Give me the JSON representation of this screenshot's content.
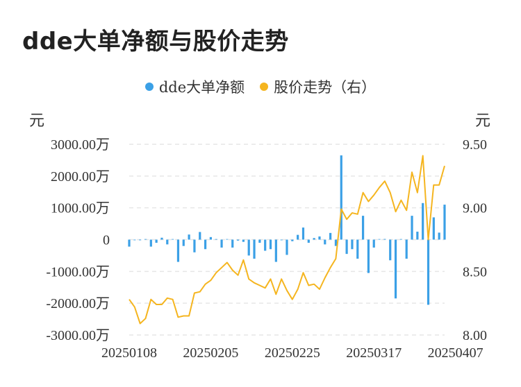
{
  "title": "dde大单净额与股价走势",
  "colors": {
    "bar": "#3ba0e6",
    "line": "#f5b51f",
    "grid": "#e6e6e6"
  },
  "chart_data": {
    "type": "bar+line",
    "legend": [
      {
        "name": "dde大单净额",
        "color": "#3ba0e6"
      },
      {
        "name": "股价走势（右）",
        "color": "#f5b51f"
      }
    ],
    "legend_position": "top-center",
    "y_left": {
      "unit": "元",
      "min": -3000,
      "max": 3000,
      "ticks": [
        3000,
        2000,
        1000,
        0,
        -1000,
        -2000,
        -3000
      ],
      "tick_labels": [
        "3000.00万",
        "2000.00万",
        "1000.00万",
        "0",
        "-1000.00万",
        "-2000.00万",
        "-3000.00万"
      ]
    },
    "y_right": {
      "unit": "元",
      "min": 8.0,
      "max": 9.5,
      "ticks": [
        9.5,
        9.0,
        8.5,
        8.0
      ],
      "tick_labels": [
        "9.50",
        "9.00",
        "8.50",
        "8.00"
      ]
    },
    "x_tick_labels": [
      {
        "index": 0,
        "label": "20250108"
      },
      {
        "index": 15,
        "label": "20250205"
      },
      {
        "index": 30,
        "label": "20250225"
      },
      {
        "index": 45,
        "label": "20250317"
      },
      {
        "index": 60,
        "label": "20250407"
      }
    ],
    "grid": true,
    "bar_values": [
      -220,
      -20,
      -20,
      10,
      -220,
      -100,
      60,
      -150,
      0,
      -700,
      -200,
      160,
      -400,
      240,
      -300,
      80,
      10,
      -250,
      10,
      -250,
      -30,
      -70,
      -500,
      -600,
      -100,
      -350,
      -300,
      -700,
      -20,
      -480,
      -50,
      150,
      380,
      -100,
      50,
      100,
      -150,
      210,
      -200,
      2650,
      -450,
      -300,
      -600,
      750,
      -1050,
      -250,
      0,
      20,
      -650,
      -1850,
      0,
      -600,
      750,
      250,
      1150,
      -2050,
      700,
      220,
      1100
    ],
    "price_values": [
      8.28,
      8.22,
      8.09,
      8.13,
      8.28,
      8.24,
      8.24,
      8.29,
      8.28,
      8.14,
      8.15,
      8.15,
      8.33,
      8.34,
      8.4,
      8.43,
      8.49,
      8.53,
      8.57,
      8.51,
      8.47,
      8.59,
      8.44,
      8.41,
      8.39,
      8.37,
      8.44,
      8.32,
      8.44,
      8.35,
      8.28,
      8.36,
      8.49,
      8.39,
      8.4,
      8.36,
      8.45,
      8.53,
      8.6,
      8.99,
      8.91,
      8.96,
      8.95,
      9.12,
      9.05,
      9.1,
      9.16,
      9.21,
      9.12,
      8.97,
      9.06,
      8.98,
      9.28,
      9.12,
      9.41,
      8.75,
      9.18,
      9.18,
      9.33
    ]
  }
}
